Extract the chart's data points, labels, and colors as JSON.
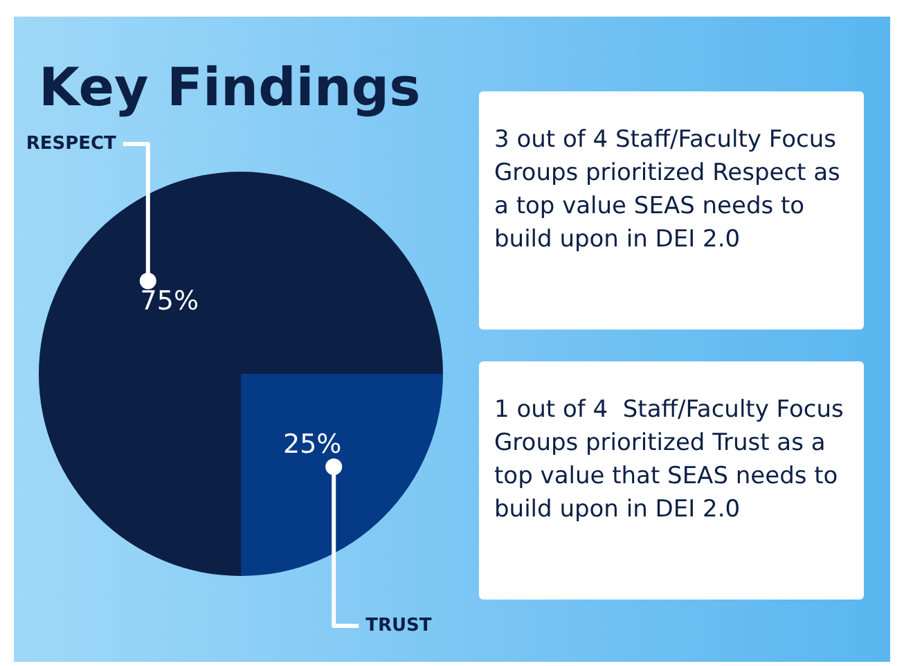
{
  "chart_data": {
    "type": "pie",
    "title": "Key Findings",
    "categories": [
      "RESPECT",
      "TRUST"
    ],
    "values": [
      75,
      25
    ],
    "colors": [
      "#0c1f45",
      "#053a87"
    ],
    "value_labels": [
      "75%",
      "25%"
    ],
    "annotations": [
      "3 out of 4 Staff/Faculty Focus Groups prioritized Respect as a top value SEAS needs to build upon in DEI 2.0",
      "1 out of 4  Staff/Faculty Focus Groups prioritized Trust as a top value that SEAS needs to build upon in DEI 2.0"
    ]
  }
}
